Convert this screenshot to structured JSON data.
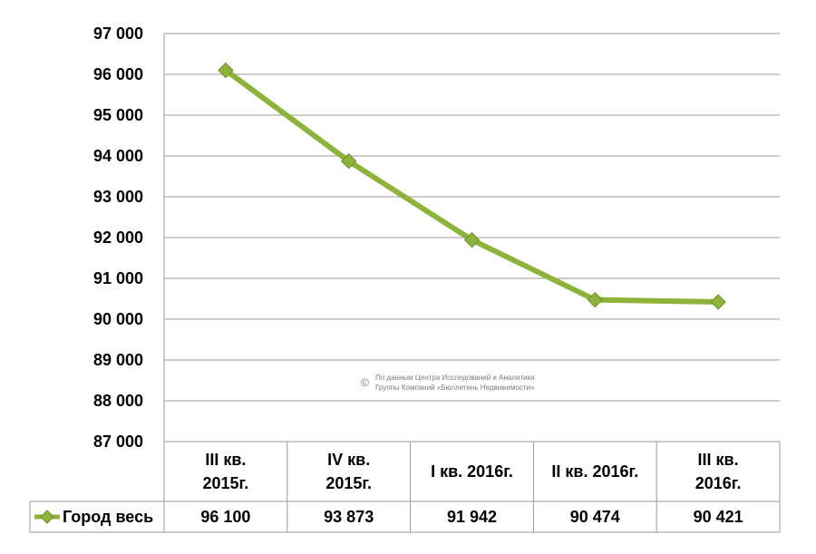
{
  "chart_data": {
    "type": "line",
    "title": "",
    "categories": [
      [
        "III кв.",
        "2015г."
      ],
      [
        "IV кв.",
        "2015г."
      ],
      [
        "I кв. 2016г."
      ],
      [
        "II кв. 2016г."
      ],
      [
        "III кв.",
        "2016г."
      ]
    ],
    "series": [
      {
        "name": "Город весь",
        "values": [
          96100,
          93873,
          91942,
          90474,
          90421
        ],
        "labels": [
          "96 100",
          "93 873",
          "91 942",
          "90 474",
          "90 421"
        ],
        "color": "#8db33b",
        "marker": "diamond"
      }
    ],
    "ylim": [
      87000,
      97000
    ],
    "yticks": [
      87000,
      88000,
      89000,
      90000,
      91000,
      92000,
      93000,
      94000,
      95000,
      96000,
      97000
    ],
    "ytick_labels": [
      "87 000",
      "88 000",
      "89 000",
      "90 000",
      "91 000",
      "92 000",
      "93 000",
      "94 000",
      "95 000",
      "96 000",
      "97 000"
    ],
    "grid": true,
    "data_table": true
  },
  "watermark": {
    "symbol": "©",
    "line1": "По данным Центра Исследований и Аналитики",
    "line2": "Группы Компаний «Бюллетень Недвижимости»"
  }
}
